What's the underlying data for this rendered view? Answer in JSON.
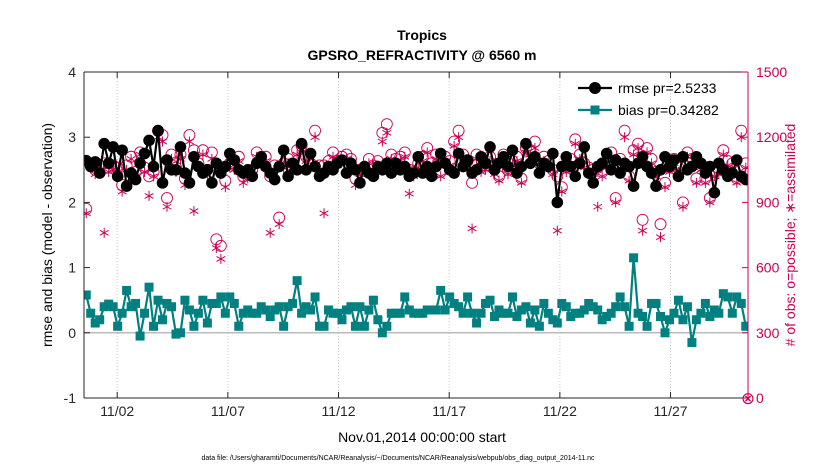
{
  "chart_data": {
    "type": "line",
    "title": "Tropics",
    "subtitle": "GPSRO_REFRACTIVITY @ 6560 m",
    "xlabel": "Nov.01,2014 00:00:00 start",
    "ylabel": "rmse and bias (model - observation)",
    "y2label": "# of obs: o=possible; ∗=assimilated",
    "footer": "data file: /Users/gharamti/Documents/NCAR/Reanalysis/~/Documents/NCAR/Reanalysis/webpub/obs_diag_output_2014-11.nc",
    "xlim": [
      0.5,
      30.5
    ],
    "ylim": [
      -1,
      4
    ],
    "y2lim": [
      0,
      1500
    ],
    "xticks": [
      2,
      7,
      12,
      17,
      22,
      27
    ],
    "xticklabels": [
      "11/02",
      "11/07",
      "11/12",
      "11/17",
      "11/22",
      "11/27"
    ],
    "yticks": [
      -1,
      0,
      1,
      2,
      3,
      4
    ],
    "y2ticks": [
      0,
      300,
      600,
      900,
      1200,
      1500
    ],
    "legend": "top-right",
    "colors": {
      "rmse": "#000000",
      "bias": "#008080",
      "obs": "#cc0055",
      "zero_line": "#bbbbbb"
    },
    "series": [
      {
        "name": "rmse",
        "label": "rmse pr=2.5233",
        "values": [
          2.64,
          2.55,
          2.62,
          2.45,
          2.9,
          2.6,
          2.85,
          2.4,
          2.8,
          2.25,
          2.45,
          2.35,
          2.6,
          2.75,
          2.95,
          2.55,
          3.1,
          2.3,
          2.65,
          2.5,
          2.5,
          2.85,
          2.45,
          2.3,
          2.7,
          2.55,
          2.45,
          2.5,
          2.3,
          2.6,
          2.45,
          2.55,
          2.75,
          2.65,
          2.5,
          2.45,
          2.5,
          2.4,
          2.6,
          2.7,
          2.55,
          2.45,
          2.35,
          2.55,
          2.8,
          2.4,
          2.6,
          2.5,
          2.9,
          2.5,
          2.75,
          2.55,
          2.4,
          2.45,
          2.55,
          2.5,
          2.6,
          2.65,
          2.45,
          2.6,
          2.5,
          2.3,
          2.55,
          2.45,
          2.4,
          2.55,
          2.5,
          2.6,
          2.45,
          2.6,
          2.5,
          2.55,
          2.4,
          2.45,
          2.7,
          2.45,
          2.55,
          2.4,
          2.55,
          2.75,
          2.6,
          2.5,
          2.45,
          2.75,
          2.55,
          2.65,
          2.45,
          2.5,
          2.7,
          2.6,
          2.85,
          2.5,
          2.6,
          2.7,
          2.55,
          2.8,
          2.45,
          2.55,
          2.9,
          2.6,
          2.7,
          2.45,
          2.6,
          2.55,
          2.75,
          2.0,
          2.55,
          2.7,
          2.55,
          2.4,
          2.6,
          2.85,
          2.45,
          2.3,
          2.55,
          2.6,
          2.75,
          2.5,
          2.65,
          2.45,
          2.6,
          2.55,
          2.25,
          2.6,
          2.7,
          2.55,
          2.45,
          2.25,
          2.5,
          2.7,
          2.55,
          2.65,
          2.4,
          2.7,
          2.5,
          2.55,
          2.7,
          2.6,
          2.45,
          2.55,
          2.15,
          2.6,
          2.5,
          2.4,
          2.45,
          2.65,
          2.4,
          2.35
        ]
      },
      {
        "name": "bias",
        "label": "bias pr=0.34282",
        "values": [
          0.58,
          0.3,
          0.15,
          0.2,
          0.4,
          0.44,
          0.4,
          0.1,
          0.3,
          0.65,
          0.4,
          0.45,
          -0.05,
          0.3,
          0.7,
          0.1,
          0.5,
          0.2,
          0.45,
          0.4,
          -0.02,
          0.0,
          0.5,
          0.35,
          0.1,
          0.3,
          0.5,
          0.15,
          0.45,
          0.45,
          0.55,
          0.3,
          0.55,
          0.45,
          0.1,
          0.3,
          0.35,
          0.3,
          0.3,
          0.4,
          0.35,
          0.25,
          0.35,
          0.4,
          0.1,
          0.4,
          0.45,
          0.8,
          0.3,
          0.4,
          0.35,
          0.55,
          0.1,
          0.1,
          0.35,
          0.3,
          0.3,
          0.2,
          0.35,
          0.4,
          0.1,
          0.4,
          0.1,
          0.35,
          0.5,
          0.2,
          0.0,
          0.1,
          0.3,
          0.3,
          0.3,
          0.55,
          0.35,
          0.3,
          0.3,
          0.3,
          0.35,
          0.35,
          0.35,
          0.65,
          0.35,
          0.55,
          0.45,
          0.4,
          0.3,
          0.55,
          0.3,
          0.15,
          0.3,
          0.45,
          0.5,
          0.25,
          0.35,
          0.3,
          0.3,
          0.55,
          0.25,
          0.35,
          0.4,
          0.15,
          0.35,
          0.1,
          0.45,
          0.3,
          0.2,
          0.15,
          0.45,
          0.4,
          0.25,
          0.3,
          0.3,
          0.35,
          0.45,
          0.4,
          0.35,
          0.2,
          0.25,
          0.3,
          0.4,
          0.55,
          0.4,
          0.1,
          1.15,
          0.3,
          0.25,
          0.1,
          0.45,
          0.45,
          0.25,
          0.0,
          0.2,
          0.3,
          0.5,
          0.2,
          0.4,
          -0.15,
          0.2,
          0.3,
          0.45,
          0.25,
          0.35,
          0.3,
          0.6,
          0.55,
          0.3,
          0.55,
          0.45,
          0.1,
          0.1,
          0.1
        ]
      },
      {
        "name": "obs_possible",
        "label": "o=possible",
        "axis": "right",
        "values": [
          870,
          1080,
          1050,
          1070,
          1080,
          1060,
          1070,
          1060,
          980,
          1070,
          1110,
          1040,
          1130,
          1060,
          1020,
          1040,
          1230,
          1210,
          920,
          1120,
          1060,
          1120,
          1010,
          1210,
          1140,
          1080,
          1140,
          1050,
          1130,
          730,
          700,
          1000,
          1080,
          1070,
          1110,
          1020,
          1030,
          1050,
          1130,
          1090,
          1110,
          1020,
          1070,
          830,
          1080,
          1100,
          1060,
          1140,
          1160,
          1110,
          1080,
          1230,
          1070,
          1070,
          1090,
          1130,
          1090,
          1110,
          1120,
          1100,
          1010,
          1050,
          1060,
          1100,
          1070,
          1090,
          1220,
          1260,
          1120,
          1100,
          1110,
          1130,
          1050,
          1040,
          1080,
          1110,
          1150,
          1080,
          1120,
          1040,
          1110,
          1090,
          1180,
          1230,
          1120,
          1090,
          990,
          1120,
          1060,
          1070,
          1110,
          1050,
          1020,
          1120,
          1050,
          1090,
          1110,
          1010,
          1150,
          1140,
          1180,
          1080,
          1110,
          1090,
          1050,
          1020,
          970,
          1060,
          1100,
          1190,
          1120,
          1080,
          1060,
          1050,
          1060,
          1040,
          1080,
          1130,
          920,
          1100,
          1230,
          1020,
          1140,
          1170,
          820,
          1150,
          1100,
          1040,
          800,
          990,
          1060,
          1100,
          1060,
          900,
          1130,
          1100,
          1010,
          1070,
          1010,
          920,
          1040,
          1050,
          1140,
          1090,
          1080,
          1010,
          1230,
          1080,
          1040,
          1050
        ]
      },
      {
        "name": "obs_assimilated",
        "label": "∗=assimilated",
        "axis": "right",
        "values": [
          850,
          1060,
          1030,
          1050,
          760,
          1040,
          1050,
          1040,
          950,
          1050,
          1100,
          1020,
          1120,
          1040,
          930,
          1020,
          1200,
          1180,
          880,
          1100,
          1040,
          1100,
          980,
          1180,
          860,
          1060,
          1120,
          1030,
          1100,
          690,
          640,
          970,
          1060,
          1050,
          1090,
          990,
          1010,
          1030,
          1110,
          1070,
          1090,
          760,
          1050,
          800,
          1060,
          1080,
          1040,
          1120,
          1140,
          1090,
          1060,
          1200,
          1050,
          850,
          1070,
          1110,
          1070,
          1090,
          1100,
          1080,
          980,
          1030,
          1040,
          1080,
          1050,
          1070,
          1180,
          1220,
          1100,
          1080,
          1090,
          1110,
          940,
          1020,
          1060,
          1090,
          1130,
          1060,
          1100,
          1020,
          1090,
          1070,
          1160,
          1200,
          1100,
          1070,
          780,
          1100,
          1040,
          1050,
          1090,
          1030,
          1000,
          1100,
          1030,
          1070,
          1090,
          990,
          1130,
          1120,
          1150,
          1060,
          1090,
          1070,
          1030,
          770,
          950,
          1040,
          1080,
          1170,
          1100,
          1060,
          1040,
          1030,
          880,
          1020,
          1060,
          1110,
          900,
          1080,
          1200,
          1000,
          1120,
          1150,
          770,
          1130,
          1080,
          1020,
          740,
          970,
          1040,
          1080,
          1040,
          880,
          1110,
          1080,
          990,
          1050,
          990,
          900,
          1020,
          1030,
          1120,
          1070,
          1060,
          990,
          1200,
          1060,
          1020,
          1030
        ]
      }
    ],
    "annotations": [
      {
        "text": "⊗",
        "at": "bottom-right corner, y2 = 0"
      }
    ]
  }
}
